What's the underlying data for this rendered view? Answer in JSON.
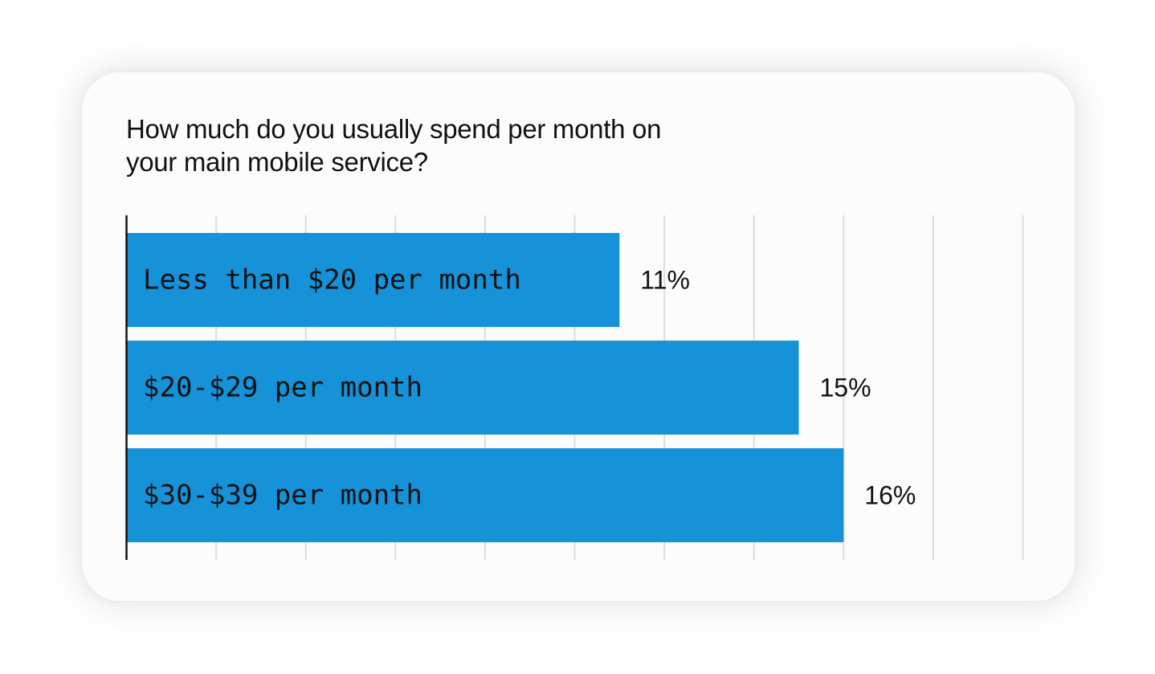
{
  "chart_data": {
    "type": "bar",
    "orientation": "horizontal",
    "title_lines": [
      "How much do you usually spend per month on",
      "your main mobile service?"
    ],
    "categories": [
      "Less than $20 per month",
      "$20-$29 per month",
      "$30-$39 per month"
    ],
    "values": [
      11,
      15,
      16
    ],
    "value_labels": [
      "11%",
      "15%",
      "16%"
    ],
    "unit": "%",
    "xlim": [
      0,
      20
    ],
    "grid_step": 2,
    "grid": true,
    "bar_color": "#1592d8",
    "grid_color": "#dddddd",
    "axis_color": "#111111"
  }
}
